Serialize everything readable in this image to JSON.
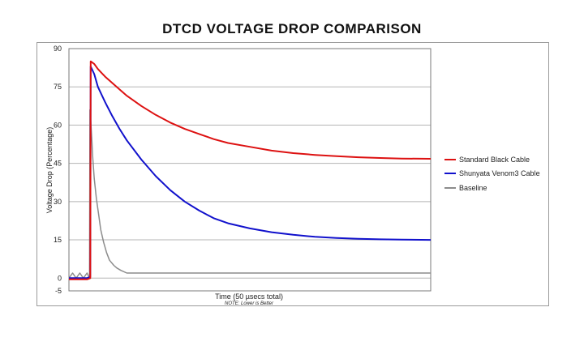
{
  "chart_data": {
    "type": "line",
    "title": "DTCD VOLTAGE DROP COMPARISON",
    "xlabel": "Time (50 µsecs total)",
    "note": "NOTE: Lower is Better",
    "ylabel": "Voltage Drop (Percentage)",
    "ylim": [
      -5,
      90
    ],
    "xlim": [
      0,
      50
    ],
    "yticks": [
      "90",
      "75",
      "60",
      "45",
      "30",
      "15",
      "0",
      "-5"
    ],
    "grid": true,
    "legend_position": "right",
    "series": [
      {
        "name": "Standard Black Cable",
        "color": "#dd1111",
        "x": [
          0,
          2.5,
          2.95,
          3.0,
          3.5,
          4,
          5,
          6,
          7,
          8,
          10,
          12,
          14,
          16,
          18,
          20,
          22,
          25,
          28,
          31,
          34,
          37,
          40,
          43,
          46,
          50
        ],
        "y": [
          -0.5,
          -0.5,
          0,
          85,
          84,
          82,
          79,
          76.5,
          74,
          71.5,
          67.5,
          64,
          61,
          58.5,
          56.5,
          54.5,
          53,
          51.5,
          50,
          49,
          48.3,
          47.8,
          47.4,
          47.1,
          46.9,
          46.8
        ]
      },
      {
        "name": "Shunyata Venom3 Cable",
        "color": "#1111cc",
        "x": [
          0,
          2.5,
          2.95,
          3.0,
          3.5,
          4,
          5,
          6,
          7,
          8,
          10,
          12,
          14,
          16,
          18,
          20,
          22,
          25,
          28,
          31,
          34,
          37,
          40,
          43,
          46,
          50
        ],
        "y": [
          0,
          0,
          0.5,
          83,
          80,
          75,
          69,
          63.5,
          58.5,
          54,
          46.5,
          40,
          34.5,
          30,
          26.5,
          23.5,
          21.5,
          19.5,
          18,
          17,
          16.2,
          15.7,
          15.4,
          15.2,
          15.1,
          15.0
        ]
      },
      {
        "name": "Baseline",
        "color": "#8c8c8c",
        "x": [
          0,
          0.5,
          1.0,
          1.5,
          2.0,
          2.5,
          2.85,
          2.9,
          3.0,
          3.15,
          3.3,
          3.5,
          3.8,
          4.1,
          4.4,
          4.8,
          5.2,
          5.6,
          6.2,
          6.6,
          7.2,
          8.0,
          9,
          15,
          25,
          35,
          40,
          50
        ],
        "y": [
          0,
          2,
          0,
          2,
          0,
          2,
          0,
          66,
          62,
          55,
          47,
          39,
          31,
          25,
          19,
          14,
          10,
          7,
          5,
          4,
          3,
          2,
          2,
          2,
          2,
          2,
          2,
          2
        ]
      }
    ]
  }
}
